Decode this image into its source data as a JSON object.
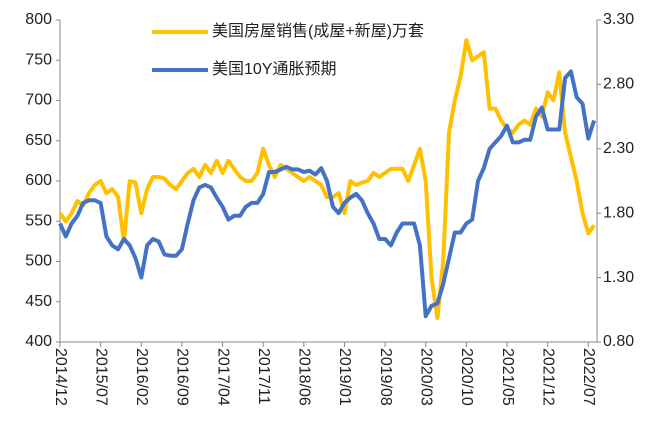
{
  "chart_data": {
    "type": "line",
    "categories": [
      "2014/12",
      null,
      null,
      null,
      null,
      null,
      null,
      "2015/07",
      null,
      null,
      null,
      null,
      null,
      null,
      "2016/02",
      null,
      null,
      null,
      null,
      null,
      null,
      "2016/09",
      null,
      null,
      null,
      null,
      null,
      null,
      "2017/04",
      null,
      null,
      null,
      null,
      null,
      null,
      "2017/11",
      null,
      null,
      null,
      null,
      null,
      null,
      "2018/06",
      null,
      null,
      null,
      null,
      null,
      null,
      "2019/01",
      null,
      null,
      null,
      null,
      null,
      null,
      "2019/08",
      null,
      null,
      null,
      null,
      null,
      null,
      "2020/03",
      null,
      null,
      null,
      null,
      null,
      null,
      "2020/10",
      null,
      null,
      null,
      null,
      null,
      null,
      "2021/05",
      null,
      null,
      null,
      null,
      null,
      null,
      "2021/12",
      null,
      null,
      null,
      null,
      null,
      null,
      "2022/07",
      null
    ],
    "series": [
      {
        "name": "美国房屋销售(成屋+新屋)万套",
        "color": "#FFC000",
        "axis": "y",
        "values": [
          560,
          550,
          560,
          575,
          570,
          585,
          595,
          600,
          585,
          590,
          580,
          525,
          600,
          598,
          560,
          590,
          605,
          605,
          603,
          595,
          590,
          600,
          610,
          615,
          605,
          620,
          610,
          625,
          610,
          625,
          615,
          605,
          600,
          600,
          610,
          640,
          620,
          605,
          620,
          615,
          610,
          605,
          600,
          605,
          600,
          595,
          580,
          580,
          585,
          560,
          600,
          595,
          598,
          600,
          610,
          605,
          610,
          615,
          615,
          615,
          600,
          620,
          640,
          600,
          480,
          430,
          500,
          660,
          700,
          730,
          775,
          750,
          755,
          760,
          690,
          690,
          675,
          665,
          660,
          670,
          675,
          670,
          690,
          680,
          710,
          700,
          735,
          660,
          630,
          600,
          560,
          535,
          545
        ]
      },
      {
        "name": "美国10Y通胀预期",
        "color": "#4472C4",
        "axis": "y2",
        "values": [
          1.72,
          1.62,
          1.72,
          1.78,
          1.88,
          1.9,
          1.9,
          1.88,
          1.62,
          1.55,
          1.52,
          1.6,
          1.55,
          1.45,
          1.3,
          1.55,
          1.6,
          1.58,
          1.48,
          1.47,
          1.47,
          1.52,
          1.72,
          1.9,
          2.0,
          2.02,
          2.0,
          1.92,
          1.85,
          1.75,
          1.78,
          1.78,
          1.85,
          1.88,
          1.88,
          1.95,
          2.12,
          2.12,
          2.14,
          2.16,
          2.14,
          2.14,
          2.12,
          2.13,
          2.1,
          2.15,
          2.05,
          1.85,
          1.8,
          1.88,
          1.92,
          1.95,
          1.9,
          1.8,
          1.72,
          1.6,
          1.6,
          1.55,
          1.65,
          1.72,
          1.72,
          1.72,
          1.55,
          1.0,
          1.08,
          1.1,
          1.25,
          1.45,
          1.65,
          1.65,
          1.72,
          1.75,
          2.05,
          2.15,
          2.3,
          2.35,
          2.4,
          2.48,
          2.35,
          2.35,
          2.37,
          2.37,
          2.55,
          2.62,
          2.45,
          2.45,
          2.45,
          2.85,
          2.9,
          2.7,
          2.65,
          2.38,
          2.52
        ]
      }
    ],
    "ylim": [
      400,
      800
    ],
    "yticks": [
      400,
      450,
      500,
      550,
      600,
      650,
      700,
      750,
      800
    ],
    "y2lim": [
      0.8,
      3.3
    ],
    "y2ticks": [
      {
        "value": 0.8,
        "label": "0.80"
      },
      {
        "value": 1.3,
        "label": "1.30"
      },
      {
        "value": 1.8,
        "label": "1.80"
      },
      {
        "value": 2.3,
        "label": "2.30"
      },
      {
        "value": 2.8,
        "label": "2.80"
      },
      {
        "value": 3.3,
        "label": "3.30"
      }
    ],
    "grid": false
  }
}
